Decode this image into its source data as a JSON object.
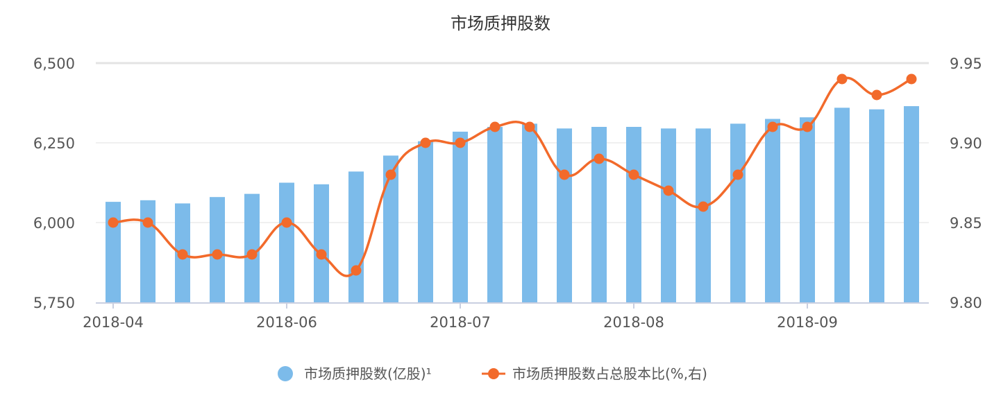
{
  "chart_data": {
    "type": "bar",
    "title": "市场质押股数",
    "x_tick_labels": [
      "2018-04",
      "2018-06",
      "2018-07",
      "2018-08",
      "2018-09"
    ],
    "x_tick_positions": [
      0,
      5,
      10,
      15,
      20
    ],
    "left_axis": {
      "ylim": [
        5750,
        6500
      ],
      "ticks": [
        "6,500",
        "6,250",
        "6,000",
        "5,750"
      ],
      "tick_values": [
        6500,
        6250,
        6000,
        5750
      ]
    },
    "right_axis": {
      "ylim": [
        9.8,
        9.95
      ],
      "ticks": [
        "9.95",
        "9.90",
        "9.85",
        "9.80"
      ],
      "tick_values": [
        9.95,
        9.9,
        9.85,
        9.8
      ]
    },
    "grid": true,
    "legend_position": "bottom",
    "series": [
      {
        "name": "市场质押股数(亿股)¹",
        "type": "bar",
        "axis": "left",
        "color": "#7cbbea",
        "values": [
          6065,
          6070,
          6060,
          6080,
          6090,
          6125,
          6120,
          6160,
          6210,
          6255,
          6285,
          6300,
          6310,
          6295,
          6300,
          6300,
          6295,
          6295,
          6310,
          6325,
          6330,
          6360,
          6355,
          6365
        ]
      },
      {
        "name": "市场质押股数占总股本比(%,右)",
        "type": "line",
        "axis": "right",
        "color": "#f26a2b",
        "values": [
          9.85,
          9.85,
          9.83,
          9.83,
          9.83,
          9.85,
          9.83,
          9.82,
          9.88,
          9.9,
          9.9,
          9.91,
          9.91,
          9.88,
          9.89,
          9.88,
          9.87,
          9.86,
          9.88,
          9.91,
          9.91,
          9.94,
          9.93,
          9.94
        ]
      }
    ]
  }
}
